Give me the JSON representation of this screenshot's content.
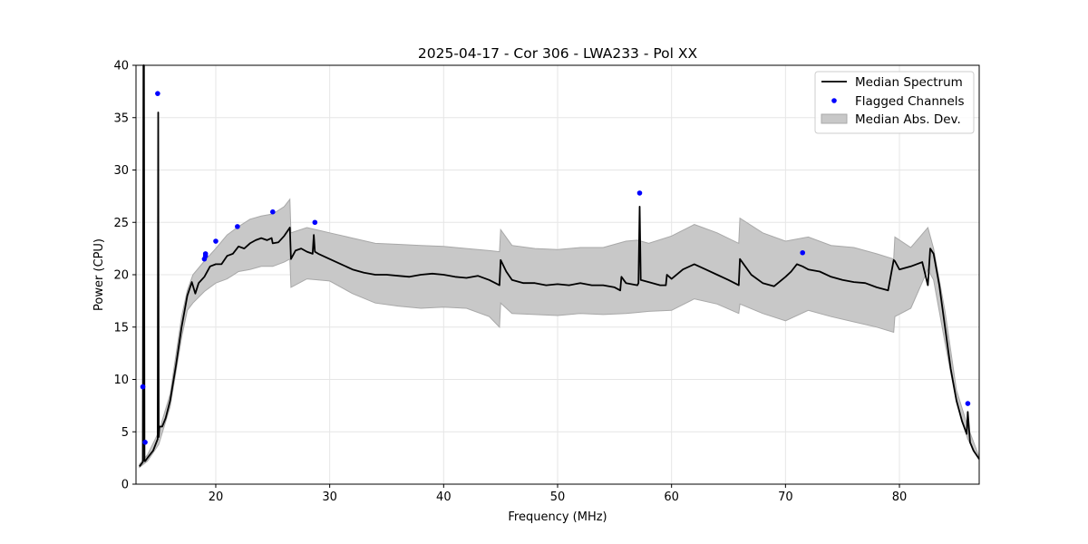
{
  "chart_data": {
    "type": "line",
    "title": "2025-04-17 - Cor 306 - LWA233 - Pol XX",
    "xlabel": "Frequency (MHz)",
    "ylabel": "Power (CPU)",
    "xlim": [
      13.0,
      87.0
    ],
    "ylim": [
      0,
      40
    ],
    "xticks": [
      20,
      30,
      40,
      50,
      60,
      70,
      80
    ],
    "yticks": [
      0,
      5,
      10,
      15,
      20,
      25,
      30,
      35,
      40
    ],
    "grid": true,
    "legend_position": "upper right",
    "legend": [
      {
        "label": "Median Spectrum",
        "kind": "line",
        "color": "#000000"
      },
      {
        "label": "Flagged Channels",
        "kind": "dot",
        "color": "#0000ff"
      },
      {
        "label": "Median Abs. Dev.",
        "kind": "patch",
        "color": "#c8c8c8"
      }
    ],
    "series": [
      {
        "name": "Median Spectrum",
        "color": "#000000",
        "x": [
          13.3,
          13.6,
          13.65,
          13.7,
          13.75,
          13.8,
          14.0,
          14.5,
          14.9,
          14.95,
          15.0,
          15.05,
          15.3,
          15.6,
          16.0,
          16.5,
          17.0,
          17.5,
          17.9,
          18.2,
          18.5,
          19.0,
          19.5,
          20.0,
          20.5,
          21.0,
          21.5,
          22.0,
          22.5,
          23.0,
          23.5,
          24.0,
          24.5,
          24.9,
          25.0,
          25.5,
          26.0,
          26.5,
          26.6,
          27.0,
          27.5,
          28.0,
          28.5,
          28.6,
          28.7,
          29.0,
          30.0,
          31.0,
          32.0,
          33.0,
          34.0,
          35.0,
          36.0,
          37.0,
          38.0,
          39.0,
          40.0,
          41.0,
          42.0,
          43.0,
          44.0,
          44.9,
          45.0,
          45.5,
          46.0,
          47.0,
          48.0,
          49.0,
          50.0,
          51.0,
          52.0,
          53.0,
          54.0,
          55.0,
          55.5,
          55.6,
          56.0,
          57.0,
          57.1,
          57.2,
          57.3,
          58.0,
          59.0,
          59.5,
          59.6,
          60.0,
          61.0,
          62.0,
          63.0,
          64.0,
          65.0,
          65.9,
          66.0,
          67.0,
          68.0,
          69.0,
          70.0,
          70.5,
          71.0,
          71.5,
          72.0,
          73.0,
          74.0,
          75.0,
          76.0,
          77.0,
          78.0,
          79.0,
          79.5,
          79.6,
          80.0,
          81.0,
          82.0,
          82.5,
          82.7,
          83.0,
          83.5,
          84.0,
          84.5,
          85.0,
          85.5,
          85.9,
          86.0,
          86.2,
          86.5,
          87.0
        ],
        "values": [
          1.7,
          2.1,
          40.0,
          40.0,
          2.2,
          2.2,
          2.5,
          3.2,
          4.3,
          35.5,
          4.5,
          5.5,
          5.5,
          6.3,
          8.0,
          11.3,
          15.0,
          18.0,
          19.3,
          18.2,
          19.2,
          19.8,
          20.8,
          21.0,
          21.0,
          21.8,
          22.0,
          22.7,
          22.5,
          23.0,
          23.3,
          23.5,
          23.3,
          23.5,
          23.0,
          23.1,
          23.7,
          24.5,
          21.5,
          22.3,
          22.5,
          22.2,
          22.0,
          23.8,
          22.2,
          22.0,
          21.5,
          21.0,
          20.5,
          20.2,
          20.0,
          20.0,
          19.9,
          19.8,
          20.0,
          20.1,
          20.0,
          19.8,
          19.7,
          19.9,
          19.5,
          19.0,
          21.4,
          20.3,
          19.5,
          19.2,
          19.2,
          19.0,
          19.1,
          19.0,
          19.2,
          19.0,
          19.0,
          18.8,
          18.5,
          19.8,
          19.2,
          19.0,
          19.2,
          26.5,
          19.5,
          19.3,
          19.0,
          19.0,
          20.0,
          19.6,
          20.5,
          21.0,
          20.5,
          20.0,
          19.5,
          19.0,
          21.5,
          20.0,
          19.2,
          18.9,
          19.8,
          20.3,
          21.0,
          20.8,
          20.5,
          20.3,
          19.8,
          19.5,
          19.3,
          19.2,
          18.8,
          18.5,
          21.4,
          21.3,
          20.5,
          20.8,
          21.2,
          19.0,
          22.5,
          22.0,
          19.0,
          15.0,
          11.0,
          8.0,
          6.0,
          4.8,
          6.9,
          4.0,
          3.2,
          2.4
        ]
      }
    ],
    "mad_band": {
      "name": "Median Abs. Dev.",
      "color": "#c8c8c8",
      "x": [
        13.3,
        14.0,
        15.0,
        16.0,
        17.0,
        17.5,
        18.0,
        19.0,
        20.0,
        21.0,
        22.0,
        23.0,
        24.0,
        25.0,
        26.0,
        26.5,
        26.6,
        28.0,
        30.0,
        32.0,
        34.0,
        36.0,
        38.0,
        40.0,
        42.0,
        44.0,
        44.9,
        45.0,
        46.0,
        48.0,
        50.0,
        52.0,
        54.0,
        56.0,
        57.0,
        58.0,
        60.0,
        62.0,
        64.0,
        65.9,
        66.0,
        68.0,
        70.0,
        72.0,
        74.0,
        76.0,
        78.0,
        79.5,
        79.6,
        81.0,
        82.5,
        83.0,
        84.0,
        85.0,
        86.0,
        87.0
      ],
      "upper": [
        1.9,
        2.8,
        5.0,
        8.6,
        16.0,
        18.5,
        20.0,
        21.3,
        22.5,
        23.8,
        24.6,
        25.3,
        25.6,
        25.8,
        26.5,
        27.2,
        24.0,
        24.5,
        24.0,
        23.5,
        23.0,
        22.9,
        22.8,
        22.7,
        22.5,
        22.3,
        22.2,
        24.3,
        22.8,
        22.5,
        22.4,
        22.6,
        22.6,
        23.2,
        23.3,
        23.0,
        23.7,
        24.8,
        24.0,
        23.0,
        25.4,
        24.0,
        23.2,
        23.6,
        22.8,
        22.6,
        22.0,
        21.5,
        23.6,
        22.6,
        24.5,
        22.5,
        16.5,
        9.0,
        5.5,
        2.6
      ],
      "lower": [
        1.6,
        2.2,
        3.8,
        7.4,
        14.0,
        16.6,
        17.3,
        18.4,
        19.2,
        19.6,
        20.3,
        20.5,
        20.8,
        20.8,
        21.2,
        21.5,
        18.8,
        19.6,
        19.4,
        18.2,
        17.3,
        17.0,
        16.8,
        16.9,
        16.8,
        16.0,
        15.0,
        17.3,
        16.3,
        16.2,
        16.1,
        16.3,
        16.2,
        16.3,
        16.4,
        16.5,
        16.6,
        17.7,
        17.2,
        16.3,
        17.2,
        16.3,
        15.6,
        16.6,
        16.0,
        15.5,
        15.0,
        14.5,
        16.0,
        16.8,
        20.5,
        19.5,
        13.5,
        7.8,
        4.3,
        2.3
      ]
    },
    "flagged_channels": {
      "name": "Flagged Channels",
      "color": "#0000ff",
      "x": [
        13.6,
        13.8,
        14.9,
        19.0,
        19.1,
        19.1,
        20.0,
        21.9,
        25.0,
        28.7,
        57.2,
        71.5,
        86.0
      ],
      "y": [
        9.3,
        4.0,
        37.3,
        21.5,
        21.8,
        22.0,
        23.2,
        24.6,
        26.0,
        25.0,
        27.8,
        22.1,
        7.7
      ]
    }
  }
}
